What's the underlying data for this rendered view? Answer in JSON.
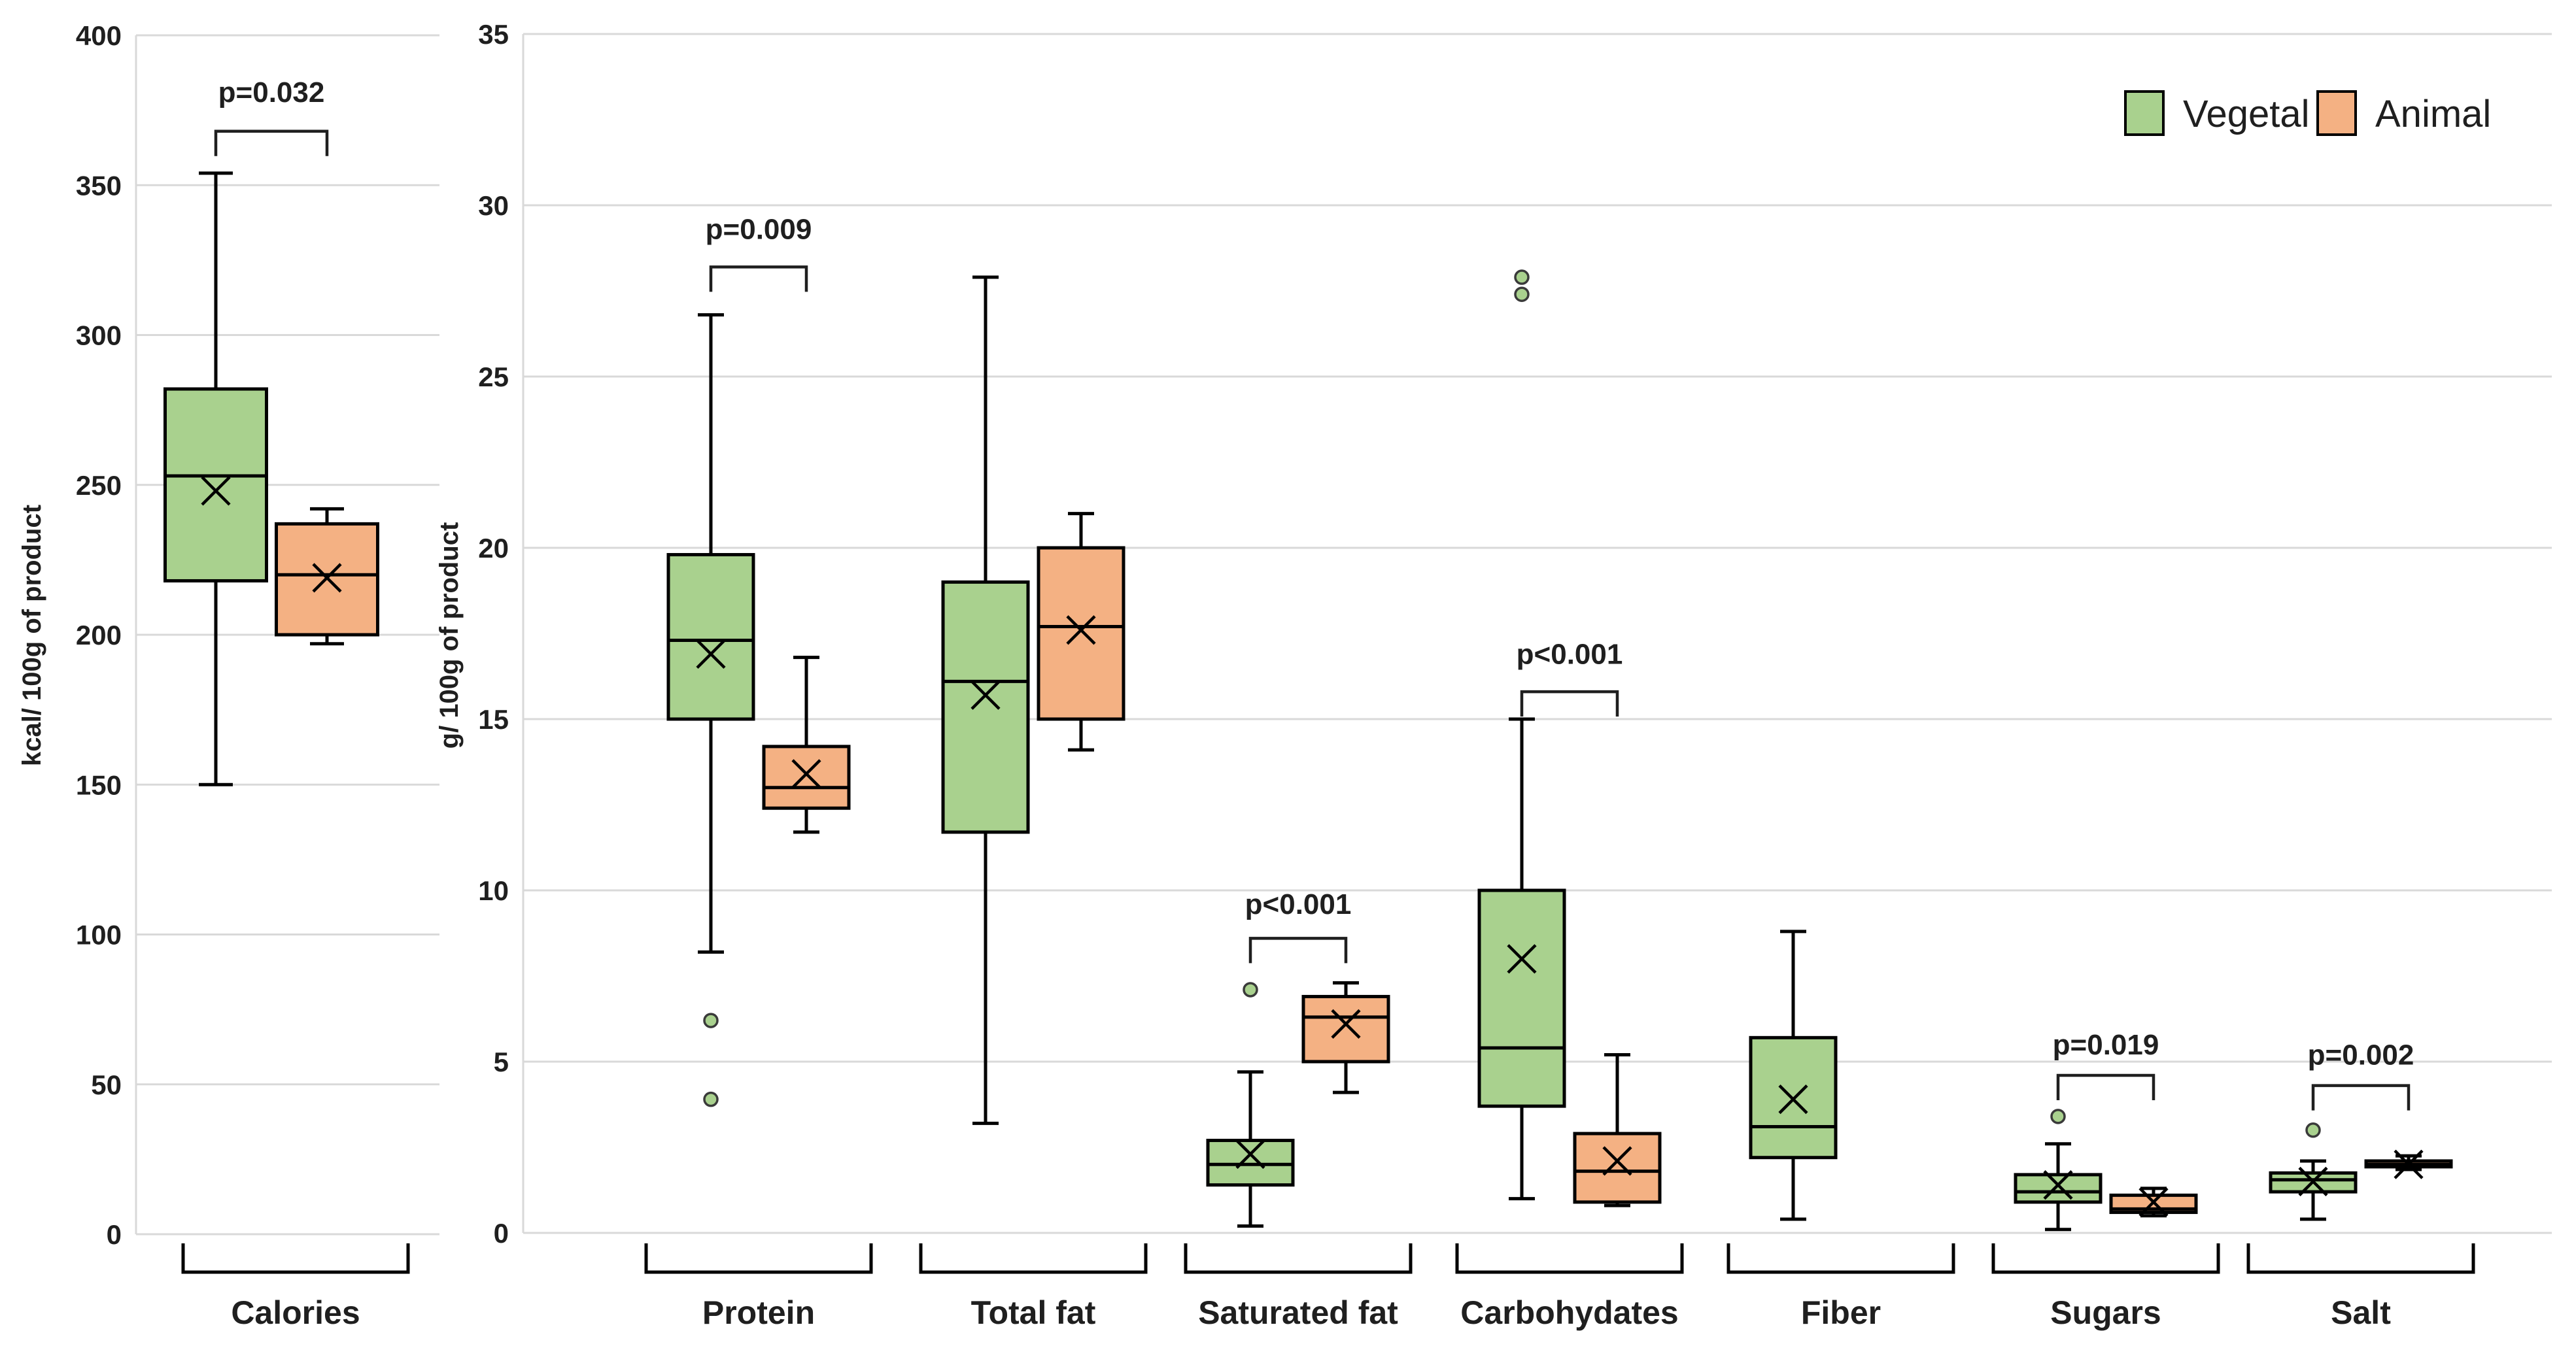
{
  "legend": {
    "items": [
      {
        "label": "Vegetal",
        "color": "#a9d18e"
      },
      {
        "label": "Animal",
        "color": "#f4b183"
      }
    ]
  },
  "chart_data": [
    {
      "type": "boxplot",
      "panel": "calories",
      "ylabel": "kcal/ 100g of product",
      "ylim": [
        0,
        400
      ],
      "yticks": [
        0,
        50,
        100,
        150,
        200,
        250,
        300,
        350,
        400
      ],
      "grid": true,
      "categories": [
        "Calories"
      ],
      "groups": [
        {
          "category": "Calories",
          "significance": {
            "label": "p=0.032",
            "bar_y": 368,
            "text_y": 381
          },
          "boxes": [
            {
              "series": "Vegetal",
              "whisker_low": 150,
              "q1": 218,
              "median": 253,
              "q3": 282,
              "whisker_high": 354,
              "mean": 248,
              "outliers": []
            },
            {
              "series": "Animal",
              "whisker_low": 197,
              "q1": 200,
              "median": 220,
              "q3": 237,
              "whisker_high": 242,
              "mean": 219,
              "outliers": []
            }
          ]
        }
      ]
    },
    {
      "type": "boxplot",
      "panel": "nutrients",
      "ylabel": "g/ 100g of product",
      "ylim": [
        0,
        35
      ],
      "yticks": [
        0,
        5,
        10,
        15,
        20,
        25,
        30,
        35
      ],
      "grid": true,
      "legend_position": "top-right",
      "categories": [
        "Protein",
        "Total fat",
        "Saturated fat",
        "Carbohydates",
        "Fiber",
        "Sugars",
        "Salt"
      ],
      "groups": [
        {
          "category": "Protein",
          "significance": {
            "label": "p=0.009",
            "bar_y": 28.2,
            "text_y": 29.3
          },
          "boxes": [
            {
              "series": "Vegetal",
              "whisker_low": 8.2,
              "q1": 15.0,
              "median": 17.3,
              "q3": 19.8,
              "whisker_high": 26.8,
              "mean": 16.9,
              "outliers": [
                6.2,
                3.9
              ]
            },
            {
              "series": "Animal",
              "whisker_low": 11.7,
              "q1": 12.4,
              "median": 13.0,
              "q3": 14.2,
              "whisker_high": 16.8,
              "mean": 13.4,
              "outliers": []
            }
          ]
        },
        {
          "category": "Total fat",
          "significance": null,
          "boxes": [
            {
              "series": "Vegetal",
              "whisker_low": 3.2,
              "q1": 11.7,
              "median": 16.1,
              "q3": 19.0,
              "whisker_high": 27.9,
              "mean": 15.7,
              "outliers": []
            },
            {
              "series": "Animal",
              "whisker_low": 14.1,
              "q1": 15.0,
              "median": 17.7,
              "q3": 20.0,
              "whisker_high": 21.0,
              "mean": 17.6,
              "outliers": []
            }
          ]
        },
        {
          "category": "Saturated fat",
          "significance": {
            "label": "p<0.001",
            "bar_y": 8.6,
            "text_y": 9.6
          },
          "boxes": [
            {
              "series": "Vegetal",
              "whisker_low": 0.2,
              "q1": 1.4,
              "median": 2.0,
              "q3": 2.7,
              "whisker_high": 4.7,
              "mean": 2.3,
              "outliers": [
                7.1
              ]
            },
            {
              "series": "Animal",
              "whisker_low": 4.1,
              "q1": 5.0,
              "median": 6.3,
              "q3": 6.9,
              "whisker_high": 7.3,
              "mean": 6.1,
              "outliers": []
            }
          ]
        },
        {
          "category": "Carbohydates",
          "significance": {
            "label": "p<0.001",
            "bar_y": 15.8,
            "text_y": 16.9
          },
          "boxes": [
            {
              "series": "Vegetal",
              "whisker_low": 1.0,
              "q1": 3.7,
              "median": 5.4,
              "q3": 10.0,
              "whisker_high": 15.0,
              "mean": 8.0,
              "outliers": [
                27.9,
                27.4
              ]
            },
            {
              "series": "Animal",
              "whisker_low": 0.8,
              "q1": 0.9,
              "median": 1.8,
              "q3": 2.9,
              "whisker_high": 5.2,
              "mean": 2.1,
              "outliers": []
            }
          ]
        },
        {
          "category": "Fiber",
          "significance": null,
          "boxes": [
            {
              "series": "Vegetal",
              "whisker_low": 0.4,
              "q1": 2.2,
              "median": 3.1,
              "q3": 5.7,
              "whisker_high": 8.8,
              "mean": 3.9,
              "outliers": []
            }
          ]
        },
        {
          "category": "Sugars",
          "significance": {
            "label": "p=0.019",
            "bar_y": 4.6,
            "text_y": 5.5
          },
          "boxes": [
            {
              "series": "Vegetal",
              "whisker_low": 0.1,
              "q1": 0.9,
              "median": 1.2,
              "q3": 1.7,
              "whisker_high": 2.6,
              "mean": 1.4,
              "outliers": [
                3.4
              ]
            },
            {
              "series": "Animal",
              "whisker_low": 0.5,
              "q1": 0.6,
              "median": 0.7,
              "q3": 1.1,
              "whisker_high": 1.3,
              "mean": 0.9,
              "outliers": []
            }
          ]
        },
        {
          "category": "Salt",
          "significance": {
            "label": "p=0.002",
            "bar_y": 4.3,
            "text_y": 5.2
          },
          "boxes": [
            {
              "series": "Vegetal",
              "whisker_low": 0.4,
              "q1": 1.2,
              "median": 1.55,
              "q3": 1.75,
              "whisker_high": 2.1,
              "mean": 1.5,
              "outliers": [
                3.0
              ]
            },
            {
              "series": "Animal",
              "whisker_low": 1.85,
              "q1": 1.93,
              "median": 2.0,
              "q3": 2.1,
              "whisker_high": 2.25,
              "mean": 2.0,
              "outliers": []
            }
          ]
        }
      ]
    }
  ],
  "styles": {
    "gridline_color": "#d9d9d9",
    "box_border_color": "#000000",
    "text_color": "#1f1f1f"
  }
}
